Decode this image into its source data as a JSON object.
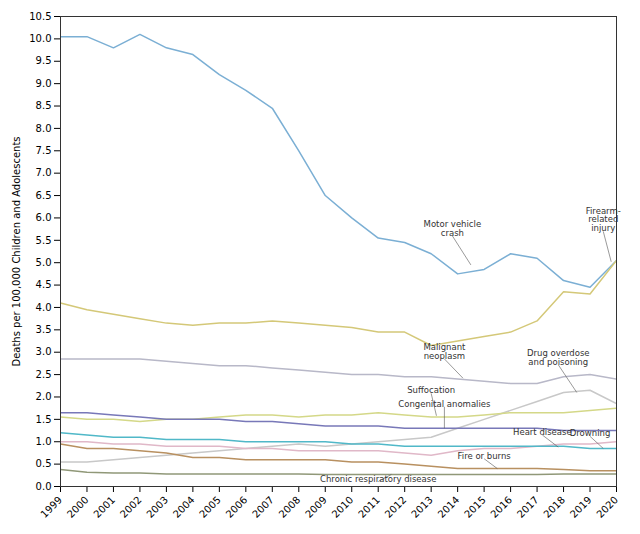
{
  "chart_data": {
    "type": "line",
    "ylabel": "Deaths per 100,000 Children and Adolescents",
    "x": [
      1999,
      2000,
      2001,
      2002,
      2003,
      2004,
      2005,
      2006,
      2007,
      2008,
      2009,
      2010,
      2011,
      2012,
      2013,
      2014,
      2015,
      2016,
      2017,
      2018,
      2019,
      2020
    ],
    "xlim": [
      1999,
      2020
    ],
    "xticks": [
      1999,
      2000,
      2001,
      2002,
      2003,
      2004,
      2005,
      2006,
      2007,
      2008,
      2009,
      2010,
      2011,
      2012,
      2013,
      2014,
      2015,
      2016,
      2017,
      2018,
      2019,
      2020
    ],
    "ylim": [
      0.0,
      10.5
    ],
    "yticks": [
      {
        "value": 0,
        "label": "0.0"
      },
      0.5,
      {
        "value": 1,
        "label": "1.0"
      },
      1.5,
      {
        "value": 2,
        "label": "2.0"
      },
      2.5,
      {
        "value": 3,
        "label": "3.0"
      },
      3.5,
      {
        "value": 4,
        "label": "4.0"
      },
      4.5,
      {
        "value": 5,
        "label": "5.0"
      },
      5.5,
      {
        "value": 6,
        "label": "6.0"
      },
      6.5,
      {
        "value": 7,
        "label": "7.0"
      },
      7.5,
      {
        "value": 8,
        "label": "8.0"
      },
      8.5,
      {
        "value": 9,
        "label": "9.0"
      },
      9.5,
      {
        "value": 10,
        "label": "10.0"
      },
      10.5
    ],
    "grid": false,
    "series": [
      {
        "name": "Motor vehicle crash",
        "color": "#7bafd4",
        "values": [
          10.05,
          10.05,
          9.8,
          10.1,
          9.8,
          9.65,
          9.2,
          8.85,
          8.45,
          7.5,
          6.5,
          6.0,
          5.55,
          5.45,
          5.2,
          4.75,
          4.85,
          5.2,
          5.1,
          4.6,
          4.45,
          5.05
        ]
      },
      {
        "name": "Firearm-related injury",
        "color": "#d4c878",
        "values": [
          4.1,
          3.95,
          3.85,
          3.75,
          3.65,
          3.6,
          3.65,
          3.65,
          3.7,
          3.65,
          3.6,
          3.55,
          3.45,
          3.45,
          3.15,
          3.25,
          3.35,
          3.45,
          3.7,
          4.35,
          4.3,
          5.05
        ]
      },
      {
        "name": "Malignant neoplasm",
        "color": "#b8b8c8",
        "values": [
          2.85,
          2.85,
          2.85,
          2.85,
          2.8,
          2.75,
          2.7,
          2.7,
          2.65,
          2.6,
          2.55,
          2.5,
          2.5,
          2.45,
          2.45,
          2.4,
          2.35,
          2.3,
          2.3,
          2.45,
          2.5,
          2.4
        ]
      },
      {
        "name": "Drug overdose and poisoning",
        "color": "#c8c8c8",
        "values": [
          0.55,
          0.55,
          0.6,
          0.65,
          0.7,
          0.75,
          0.8,
          0.85,
          0.9,
          0.95,
          0.9,
          0.95,
          1.0,
          1.05,
          1.1,
          1.3,
          1.5,
          1.7,
          1.9,
          2.1,
          2.15,
          1.85
        ]
      },
      {
        "name": "Suffocation",
        "color": "#d4d888",
        "values": [
          1.55,
          1.5,
          1.5,
          1.45,
          1.5,
          1.5,
          1.55,
          1.6,
          1.6,
          1.55,
          1.6,
          1.6,
          1.65,
          1.6,
          1.55,
          1.55,
          1.6,
          1.65,
          1.65,
          1.65,
          1.7,
          1.75
        ]
      },
      {
        "name": "Congenital anomalies",
        "color": "#7878b8",
        "values": [
          1.65,
          1.65,
          1.6,
          1.55,
          1.5,
          1.5,
          1.5,
          1.45,
          1.45,
          1.4,
          1.35,
          1.35,
          1.35,
          1.3,
          1.3,
          1.3,
          1.3,
          1.3,
          1.3,
          1.25,
          1.25,
          1.25
        ]
      },
      {
        "name": "Heart disease",
        "color": "#e0b8c8",
        "values": [
          1.0,
          1.0,
          0.95,
          0.95,
          0.9,
          0.9,
          0.9,
          0.85,
          0.85,
          0.8,
          0.8,
          0.8,
          0.8,
          0.75,
          0.7,
          0.8,
          0.85,
          0.85,
          0.9,
          0.95,
          0.95,
          1.0
        ]
      },
      {
        "name": "Drowning",
        "color": "#50b8c8",
        "values": [
          1.2,
          1.15,
          1.1,
          1.1,
          1.05,
          1.05,
          1.05,
          1.0,
          1.0,
          1.0,
          1.0,
          0.95,
          0.95,
          0.9,
          0.9,
          0.9,
          0.9,
          0.9,
          0.9,
          0.9,
          0.85,
          0.85
        ]
      },
      {
        "name": "Fire or burns",
        "color": "#b89060",
        "values": [
          0.95,
          0.85,
          0.85,
          0.8,
          0.75,
          0.65,
          0.65,
          0.6,
          0.6,
          0.6,
          0.6,
          0.55,
          0.55,
          0.5,
          0.45,
          0.4,
          0.4,
          0.4,
          0.4,
          0.38,
          0.35,
          0.35
        ]
      },
      {
        "name": "Chronic respiratory disease",
        "color": "#909878",
        "values": [
          0.38,
          0.32,
          0.3,
          0.3,
          0.28,
          0.28,
          0.28,
          0.28,
          0.28,
          0.28,
          0.27,
          0.27,
          0.27,
          0.27,
          0.27,
          0.27,
          0.27,
          0.27,
          0.27,
          0.28,
          0.28,
          0.28
        ]
      }
    ],
    "annotations": [
      {
        "text": "Motor vehicle\ncrash",
        "xy": [
          2014.5,
          4.95
        ],
        "xytext": [
          2013.8,
          5.6
        ]
      },
      {
        "text": "Firearm-\nrelated\ninjury",
        "xy": [
          2019.8,
          5.02
        ],
        "xytext": [
          2019.5,
          5.7
        ]
      },
      {
        "text": "Malignant\nneoplasm",
        "xy": [
          2014.2,
          2.42
        ],
        "xytext": [
          2013.5,
          2.85
        ]
      },
      {
        "text": "Drug overdose\nand poisoning",
        "xy": [
          2018.5,
          2.1
        ],
        "xytext": [
          2017.8,
          2.72
        ]
      },
      {
        "text": "Suffocation",
        "xy": [
          2013.2,
          1.58
        ],
        "xytext": [
          2013.0,
          2.08
        ]
      },
      {
        "text": "Congenital anomalies",
        "xy": [
          2013.5,
          1.3
        ],
        "xytext": [
          2013.5,
          1.78
        ]
      },
      {
        "text": "Heart disease",
        "xy": [
          2017.8,
          0.88
        ],
        "xytext": [
          2017.2,
          1.15
        ]
      },
      {
        "text": "Drowning",
        "xy": [
          2019.5,
          0.85
        ],
        "xytext": [
          2019.0,
          1.12
        ]
      },
      {
        "text": "Fire or burns",
        "xy": [
          2015.5,
          0.4
        ],
        "xytext": [
          2015.0,
          0.62
        ]
      },
      {
        "text": "Chronic respiratory disease",
        "xy": [
          2011.5,
          0.27
        ],
        "xytext": [
          2011.0,
          0.11
        ]
      }
    ]
  }
}
